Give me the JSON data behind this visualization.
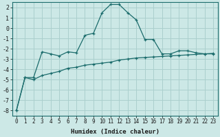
{
  "xlabel": "Humidex (Indice chaleur)",
  "background_color": "#cce8e6",
  "grid_color": "#aacfcd",
  "line_color": "#1a6b6b",
  "x_line1": [
    0,
    1,
    2,
    3,
    4,
    5,
    6,
    7,
    8,
    9,
    10,
    11,
    12,
    13,
    14,
    15,
    16,
    17,
    18,
    19,
    20,
    21,
    22,
    23
  ],
  "y_line1": [
    -8.0,
    -4.8,
    -4.8,
    -2.3,
    -2.5,
    -2.7,
    -2.3,
    -2.4,
    -0.7,
    -0.5,
    1.5,
    2.3,
    2.3,
    1.5,
    0.8,
    -1.1,
    -1.1,
    -2.5,
    -2.5,
    -2.2,
    -2.2,
    -2.4,
    -2.5,
    -2.5
  ],
  "x_line2": [
    0,
    1,
    2,
    3,
    4,
    5,
    6,
    7,
    8,
    9,
    10,
    11,
    12,
    13,
    14,
    15,
    16,
    17,
    18,
    19,
    20,
    21,
    22,
    23
  ],
  "y_line2": [
    -8.0,
    -4.8,
    -5.0,
    -4.6,
    -4.4,
    -4.2,
    -3.9,
    -3.8,
    -3.6,
    -3.5,
    -3.4,
    -3.3,
    -3.1,
    -3.0,
    -2.9,
    -2.85,
    -2.8,
    -2.75,
    -2.7,
    -2.65,
    -2.6,
    -2.55,
    -2.5,
    -2.45
  ],
  "ylim": [
    -8.5,
    2.5
  ],
  "xlim": [
    -0.5,
    23.5
  ],
  "yticks": [
    -8,
    -7,
    -6,
    -5,
    -4,
    -3,
    -2,
    -1,
    0,
    1,
    2
  ],
  "xticks": [
    0,
    1,
    2,
    3,
    4,
    5,
    6,
    7,
    8,
    9,
    10,
    11,
    12,
    13,
    14,
    15,
    16,
    17,
    18,
    19,
    20,
    21,
    22,
    23
  ],
  "xlabel_fontsize": 6.5,
  "xlabel_fontweight": "bold",
  "tick_fontsize": 5.5,
  "ytick_fontsize": 6.0
}
